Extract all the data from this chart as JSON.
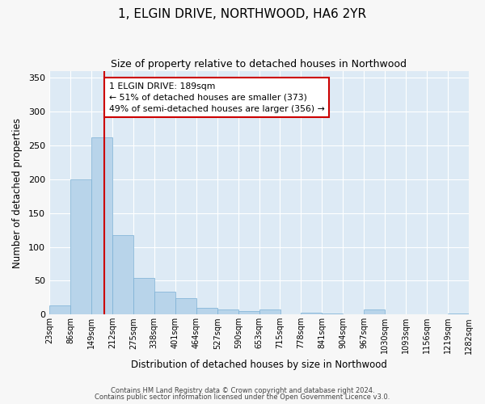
{
  "title": "1, ELGIN DRIVE, NORTHWOOD, HA6 2YR",
  "subtitle": "Size of property relative to detached houses in Northwood",
  "xlabel": "Distribution of detached houses by size in Northwood",
  "ylabel": "Number of detached properties",
  "bar_color": "#b8d4ea",
  "bar_edge_color": "#7aafd4",
  "background_color": "#ddeaf5",
  "fig_background_color": "#f7f7f7",
  "grid_color": "#ffffff",
  "annotation_box_edge_color": "#cc0000",
  "vline_color": "#cc0000",
  "vline_x": 189,
  "bin_edges": [
    23,
    86,
    149,
    212,
    275,
    338,
    401,
    464,
    527,
    590,
    653,
    715,
    778,
    841,
    904,
    967,
    1030,
    1093,
    1156,
    1219,
    1282
  ],
  "bin_labels": [
    "23sqm",
    "86sqm",
    "149sqm",
    "212sqm",
    "275sqm",
    "338sqm",
    "401sqm",
    "464sqm",
    "527sqm",
    "590sqm",
    "653sqm",
    "715sqm",
    "778sqm",
    "841sqm",
    "904sqm",
    "967sqm",
    "1030sqm",
    "1093sqm",
    "1156sqm",
    "1219sqm",
    "1282sqm"
  ],
  "bar_heights": [
    13,
    200,
    262,
    118,
    54,
    34,
    24,
    10,
    8,
    5,
    7,
    0,
    3,
    2,
    0,
    8,
    0,
    0,
    0,
    2
  ],
  "ylim": [
    0,
    360
  ],
  "yticks": [
    0,
    50,
    100,
    150,
    200,
    250,
    300,
    350
  ],
  "annotation_line1": "1 ELGIN DRIVE: 189sqm",
  "annotation_line2": "← 51% of detached houses are smaller (373)",
  "annotation_line3": "49% of semi-detached houses are larger (356) →",
  "footnote1": "Contains HM Land Registry data © Crown copyright and database right 2024.",
  "footnote2": "Contains public sector information licensed under the Open Government Licence v3.0."
}
